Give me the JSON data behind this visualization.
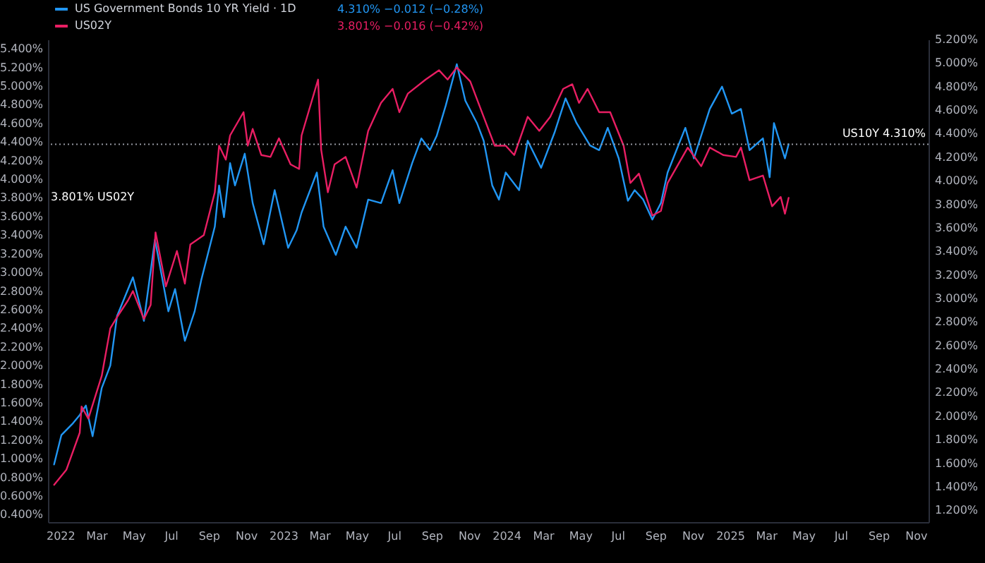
{
  "chart_data": {
    "type": "line",
    "legend": "top left",
    "line_style": "solid",
    "grid": false,
    "xlim": [
      "2021-12-12",
      "2025-11-22"
    ],
    "xticks": [
      {
        "value": "2022-01-01",
        "label": "2022"
      },
      {
        "value": "2022-03-01",
        "label": "Mar"
      },
      {
        "value": "2022-05-01",
        "label": "May"
      },
      {
        "value": "2022-07-01",
        "label": "Jul"
      },
      {
        "value": "2022-09-01",
        "label": "Sep"
      },
      {
        "value": "2022-11-01",
        "label": "Nov"
      },
      {
        "value": "2023-01-01",
        "label": "2023"
      },
      {
        "value": "2023-03-01",
        "label": "Mar"
      },
      {
        "value": "2023-05-01",
        "label": "May"
      },
      {
        "value": "2023-07-01",
        "label": "Jul"
      },
      {
        "value": "2023-09-01",
        "label": "Sep"
      },
      {
        "value": "2023-11-01",
        "label": "Nov"
      },
      {
        "value": "2024-01-01",
        "label": "2024"
      },
      {
        "value": "2024-03-01",
        "label": "Mar"
      },
      {
        "value": "2024-05-01",
        "label": "May"
      },
      {
        "value": "2024-07-01",
        "label": "Jul"
      },
      {
        "value": "2024-09-01",
        "label": "Sep"
      },
      {
        "value": "2024-11-01",
        "label": "Nov"
      },
      {
        "value": "2025-01-01",
        "label": "2025"
      },
      {
        "value": "2025-03-01",
        "label": "Mar"
      },
      {
        "value": "2025-05-01",
        "label": "May"
      },
      {
        "value": "2025-07-01",
        "label": "Jul"
      },
      {
        "value": "2025-09-01",
        "label": "Sep"
      },
      {
        "value": "2025-11-01",
        "label": "Nov"
      }
    ],
    "ylim": [
      0.32,
      5.5
    ],
    "yticks": [
      {
        "value": 0.4,
        "label": "0.400%"
      },
      {
        "value": 0.6,
        "label": "0.600%"
      },
      {
        "value": 0.8,
        "label": "0.800%"
      },
      {
        "value": 1.0,
        "label": "1.000%"
      },
      {
        "value": 1.2,
        "label": "1.200%"
      },
      {
        "value": 1.4,
        "label": "1.400%"
      },
      {
        "value": 1.6,
        "label": "1.600%"
      },
      {
        "value": 1.8,
        "label": "1.800%"
      },
      {
        "value": 2.0,
        "label": "2.000%"
      },
      {
        "value": 2.2,
        "label": "2.200%"
      },
      {
        "value": 2.4,
        "label": "2.400%"
      },
      {
        "value": 2.6,
        "label": "2.600%"
      },
      {
        "value": 2.8,
        "label": "2.800%"
      },
      {
        "value": 3.0,
        "label": "3.000%"
      },
      {
        "value": 3.2,
        "label": "3.200%"
      },
      {
        "value": 3.4,
        "label": "3.400%"
      },
      {
        "value": 3.6,
        "label": "3.600%"
      },
      {
        "value": 3.8,
        "label": "3.800%"
      },
      {
        "value": 4.0,
        "label": "4.000%"
      },
      {
        "value": 4.2,
        "label": "4.200%"
      },
      {
        "value": 4.4,
        "label": "4.400%"
      },
      {
        "value": 4.6,
        "label": "4.600%"
      },
      {
        "value": 4.8,
        "label": "4.800%"
      },
      {
        "value": 5.0,
        "label": "5.000%"
      },
      {
        "value": 5.2,
        "label": "5.200%"
      },
      {
        "value": 5.4,
        "label": "5.400%"
      }
    ],
    "y2lim": [
      1.1,
      5.2
    ],
    "y2ticks": [
      {
        "value": 1.2,
        "label": "1.200%"
      },
      {
        "value": 1.4,
        "label": "1.400%"
      },
      {
        "value": 1.6,
        "label": "1.600%"
      },
      {
        "value": 1.8,
        "label": "1.800%"
      },
      {
        "value": 2.0,
        "label": "2.000%"
      },
      {
        "value": 2.2,
        "label": "2.200%"
      },
      {
        "value": 2.4,
        "label": "2.400%"
      },
      {
        "value": 2.6,
        "label": "2.600%"
      },
      {
        "value": 2.8,
        "label": "2.800%"
      },
      {
        "value": 3.0,
        "label": "3.000%"
      },
      {
        "value": 3.2,
        "label": "3.200%"
      },
      {
        "value": 3.4,
        "label": "3.400%"
      },
      {
        "value": 3.6,
        "label": "3.600%"
      },
      {
        "value": 3.8,
        "label": "3.800%"
      },
      {
        "value": 4.0,
        "label": "4.000%"
      },
      {
        "value": 4.2,
        "label": "4.200%"
      },
      {
        "value": 4.4,
        "label": "4.400%"
      },
      {
        "value": 4.6,
        "label": "4.600%"
      },
      {
        "value": 4.8,
        "label": "4.800%"
      },
      {
        "value": 5.0,
        "label": "5.000%"
      },
      {
        "value": 5.2,
        "label": "5.200%"
      }
    ],
    "series": [
      {
        "name": "US Government Bonds 10 YR Yield · 1D",
        "color": "#2196f3",
        "axis": "y2",
        "x": [
          "2021-12-22",
          "2022-01-03",
          "2022-01-22",
          "2022-02-02",
          "2022-02-12",
          "2022-02-23",
          "2022-03-10",
          "2022-03-24",
          "2022-04-04",
          "2022-04-30",
          "2022-05-18",
          "2022-06-05",
          "2022-06-12",
          "2022-06-27",
          "2022-07-08",
          "2022-07-24",
          "2022-08-09",
          "2022-08-20",
          "2022-09-11",
          "2022-09-18",
          "2022-09-26",
          "2022-10-06",
          "2022-10-14",
          "2022-10-30",
          "2022-11-12",
          "2022-11-30",
          "2022-12-18",
          "2023-01-09",
          "2023-01-23",
          "2023-01-31",
          "2023-02-25",
          "2023-03-08",
          "2023-03-28",
          "2023-04-13",
          "2023-05-01",
          "2023-05-20",
          "2023-06-10",
          "2023-06-29",
          "2023-07-10",
          "2023-07-31",
          "2023-08-15",
          "2023-08-29",
          "2023-09-09",
          "2023-09-24",
          "2023-10-12",
          "2023-10-26",
          "2023-11-14",
          "2023-11-25",
          "2023-12-09",
          "2023-12-20",
          "2023-12-31",
          "2024-01-22",
          "2024-02-05",
          "2024-02-27",
          "2024-03-20",
          "2024-04-07",
          "2024-04-25",
          "2024-05-17",
          "2024-06-01",
          "2024-06-15",
          "2024-07-03",
          "2024-07-18",
          "2024-07-29",
          "2024-08-12",
          "2024-08-27",
          "2024-09-10",
          "2024-09-21",
          "2024-10-20",
          "2024-11-03",
          "2024-11-29",
          "2024-12-19",
          "2025-01-04",
          "2025-01-19",
          "2025-02-02",
          "2025-02-24",
          "2025-03-07",
          "2025-03-14",
          "2025-04-01",
          "2025-04-07"
        ],
        "values": [
          1.59,
          1.84,
          1.94,
          2.01,
          2.09,
          1.83,
          2.24,
          2.43,
          2.85,
          3.18,
          2.81,
          3.5,
          3.31,
          2.89,
          3.08,
          2.64,
          2.89,
          3.16,
          3.61,
          3.96,
          3.69,
          4.15,
          3.96,
          4.23,
          3.81,
          3.46,
          3.92,
          3.43,
          3.58,
          3.73,
          4.07,
          3.61,
          3.37,
          3.61,
          3.43,
          3.84,
          3.81,
          4.09,
          3.81,
          4.15,
          4.36,
          4.26,
          4.38,
          4.64,
          4.99,
          4.68,
          4.49,
          4.34,
          3.96,
          3.84,
          4.07,
          3.92,
          4.34,
          4.11,
          4.41,
          4.7,
          4.49,
          4.3,
          4.26,
          4.45,
          4.19,
          3.83,
          3.92,
          3.84,
          3.67,
          3.81,
          4.07,
          4.45,
          4.19,
          4.61,
          4.8,
          4.57,
          4.61,
          4.26,
          4.36,
          4.03,
          4.49,
          4.19,
          4.31
        ]
      },
      {
        "name": "US02Y",
        "color": "#e91e63",
        "x": [
          "2021-12-22",
          "2022-01-11",
          "2022-02-02",
          "2022-02-05",
          "2022-02-16",
          "2022-03-10",
          "2022-03-24",
          "2022-04-04",
          "2022-04-22",
          "2022-04-30",
          "2022-05-18",
          "2022-05-29",
          "2022-06-06",
          "2022-06-23",
          "2022-07-11",
          "2022-07-24",
          "2022-08-02",
          "2022-08-24",
          "2022-09-11",
          "2022-09-18",
          "2022-09-29",
          "2022-10-06",
          "2022-10-28",
          "2022-11-04",
          "2022-11-12",
          "2022-11-26",
          "2022-12-11",
          "2022-12-25",
          "2023-01-13",
          "2023-01-27",
          "2023-01-31",
          "2023-02-27",
          "2023-03-04",
          "2023-03-15",
          "2023-03-26",
          "2023-04-13",
          "2023-05-01",
          "2023-05-20",
          "2023-06-10",
          "2023-06-29",
          "2023-07-10",
          "2023-07-24",
          "2023-08-22",
          "2023-09-13",
          "2023-09-27",
          "2023-10-12",
          "2023-11-03",
          "2023-11-25",
          "2023-12-13",
          "2023-12-31",
          "2024-01-14",
          "2024-02-05",
          "2024-02-24",
          "2024-03-13",
          "2024-04-03",
          "2024-04-18",
          "2024-04-29",
          "2024-05-13",
          "2024-06-01",
          "2024-06-19",
          "2024-07-11",
          "2024-07-22",
          "2024-08-05",
          "2024-08-27",
          "2024-09-10",
          "2024-09-21",
          "2024-10-24",
          "2024-11-15",
          "2024-11-29",
          "2024-12-21",
          "2025-01-11",
          "2025-01-19",
          "2025-02-02",
          "2025-02-24",
          "2025-03-11",
          "2025-03-25",
          "2025-04-01",
          "2025-04-07"
        ],
        "values": [
          0.72,
          0.88,
          1.28,
          1.56,
          1.43,
          1.89,
          2.4,
          2.52,
          2.7,
          2.8,
          2.5,
          2.65,
          3.43,
          2.85,
          3.23,
          2.88,
          3.3,
          3.4,
          3.86,
          4.36,
          4.21,
          4.47,
          4.72,
          4.36,
          4.54,
          4.26,
          4.24,
          4.44,
          4.16,
          4.11,
          4.47,
          5.07,
          4.32,
          3.86,
          4.16,
          4.24,
          3.91,
          4.52,
          4.82,
          4.97,
          4.72,
          4.92,
          5.07,
          5.17,
          5.07,
          5.2,
          5.05,
          4.67,
          4.36,
          4.36,
          4.26,
          4.67,
          4.52,
          4.67,
          4.97,
          5.02,
          4.82,
          4.97,
          4.72,
          4.72,
          4.36,
          3.96,
          4.06,
          3.61,
          3.66,
          3.96,
          4.34,
          4.14,
          4.34,
          4.26,
          4.24,
          4.34,
          3.99,
          4.04,
          3.71,
          3.81,
          3.63,
          3.8
        ]
      }
    ],
    "ref_lines": [
      {
        "axis": "y2",
        "value": 4.31,
        "label": "US10Y 4.310%",
        "line_style": "dotted",
        "color": "#9598a1"
      }
    ],
    "annotations": [
      "4.310% −0.012 (−0.28%)",
      "3.801% −0.016 (−0.42%)",
      "3.801% US02Y"
    ]
  }
}
